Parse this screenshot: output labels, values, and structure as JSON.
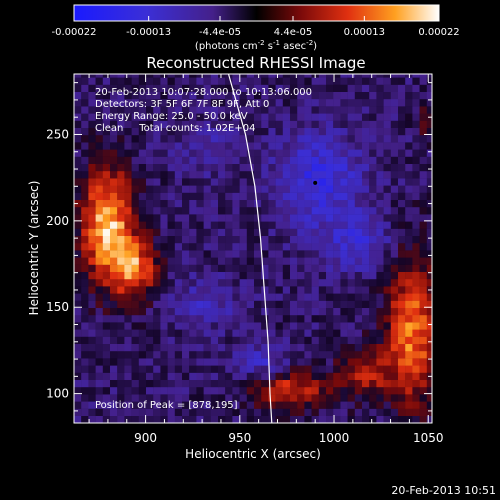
{
  "chart_data": {
    "type": "heatmap",
    "title": "Reconstructed RHESSI Image",
    "xlabel": "Heliocentric X (arcsec)",
    "ylabel": "Heliocentric Y (arcsec)",
    "xlim": [
      862,
      1052
    ],
    "ylim": [
      83,
      285
    ],
    "xticks": [
      900,
      950,
      1000,
      1050
    ],
    "yticks": [
      100,
      150,
      200,
      250
    ],
    "colorbar": {
      "ticks": [
        "-0.00022",
        "-0.00013",
        "-4.4e-05",
        "4.4e-05",
        "0.00013",
        "0.00022"
      ],
      "values": [
        -0.00022,
        -0.00013,
        -4.4e-05,
        4.4e-05,
        0.00013,
        0.00022
      ],
      "range": [
        -0.00022,
        0.00022
      ],
      "units_prefix": "(photons cm",
      "units_exp1": "-2",
      "units_mid": " s",
      "units_exp2": "-1",
      "units_mid2": " asec",
      "units_exp3": "-2",
      "units_suffix": ")"
    },
    "info_lines": [
      "20-Feb-2013 10:07:28.000 to 10:13:06.000",
      "Detectors: 3F 5F 6F 7F 8F 9F, Att 0",
      "Energy Range: 25.0 - 50.0 keV",
      "Clean     Total counts: 1.02E+04"
    ],
    "peak_label": "Position of Peak = [878,195]",
    "peak_position": [
      878,
      195
    ],
    "timestamp": "20-Feb-2013 10:51",
    "sources": [
      {
        "x": 878,
        "y": 195,
        "sx": 10,
        "sy": 24,
        "amp": 0.00022
      },
      {
        "x": 893,
        "y": 170,
        "sx": 8,
        "sy": 12,
        "amp": 0.00016
      },
      {
        "x": 1040,
        "y": 135,
        "sx": 10,
        "sy": 30,
        "amp": 0.00018
      },
      {
        "x": 1015,
        "y": 110,
        "sx": 10,
        "sy": 10,
        "amp": 0.00012
      },
      {
        "x": 975,
        "y": 100,
        "sx": 14,
        "sy": 8,
        "amp": 0.00014
      },
      {
        "x": 1048,
        "y": 255,
        "sx": 4,
        "sy": 6,
        "amp": 8e-05
      }
    ],
    "negative_sources": [
      {
        "x": 990,
        "y": 222,
        "sx": 16,
        "sy": 18,
        "amp": -0.00011
      },
      {
        "x": 1010,
        "y": 185,
        "sx": 14,
        "sy": 12,
        "amp": -8e-05
      },
      {
        "x": 930,
        "y": 150,
        "sx": 12,
        "sy": 10,
        "amp": -6e-05
      },
      {
        "x": 960,
        "y": 115,
        "sx": 10,
        "sy": 8,
        "amp": -7e-05
      },
      {
        "x": 930,
        "y": 240,
        "sx": 12,
        "sy": 10,
        "amp": -5e-05
      }
    ],
    "limb_curve": [
      [
        944,
        285
      ],
      [
        953,
        250
      ],
      [
        958,
        220
      ],
      [
        961,
        190
      ],
      [
        963,
        160
      ],
      [
        965,
        130
      ],
      [
        966,
        100
      ],
      [
        967,
        83
      ]
    ]
  }
}
